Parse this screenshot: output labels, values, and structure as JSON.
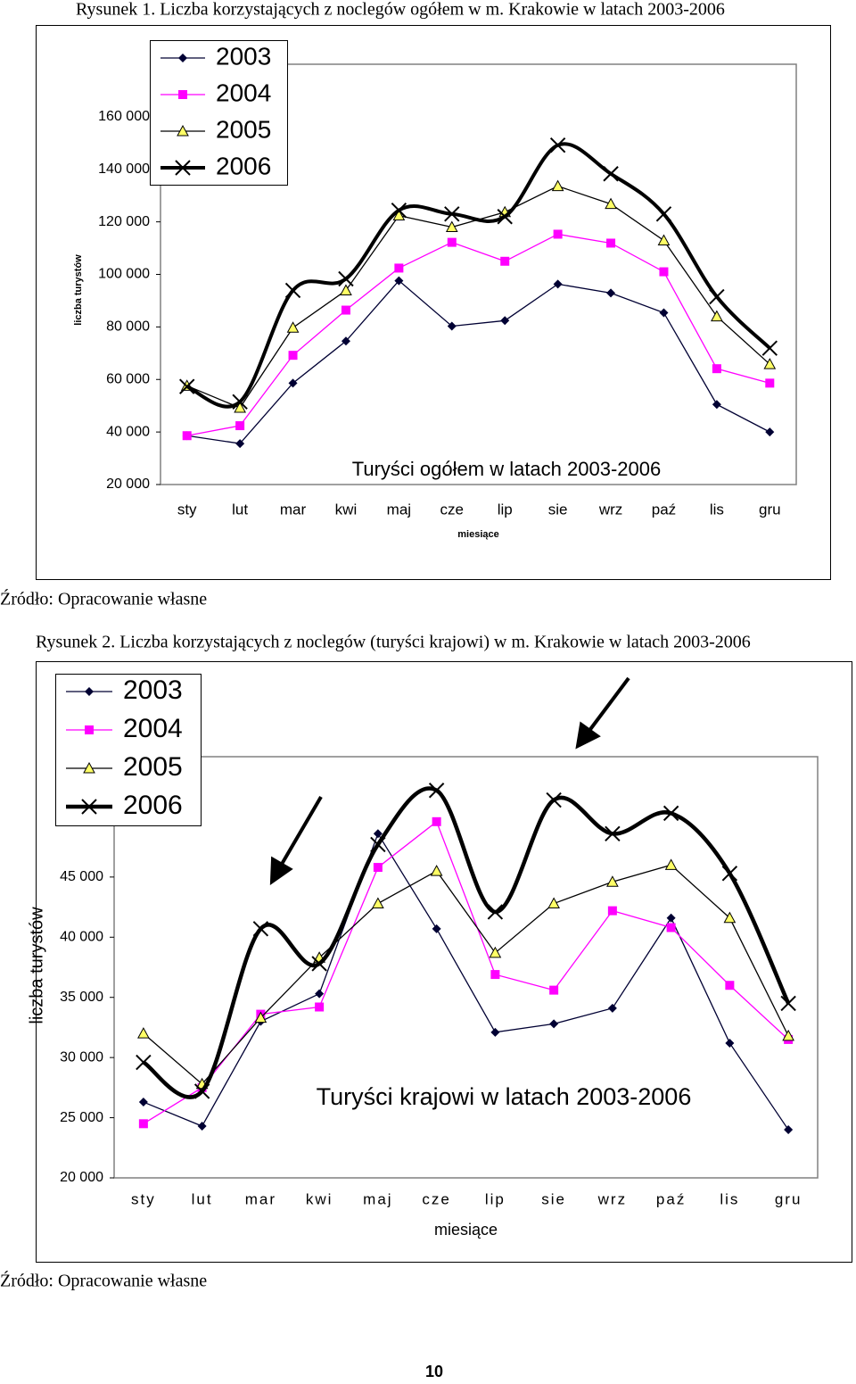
{
  "figures": [
    {
      "caption": "Rysunek 1. Liczba korzystających z noclegów ogółem w m. Krakowie w latach 2003-2006",
      "source": "Źródło: Opracowanie własne"
    },
    {
      "caption": "Rysunek 2. Liczba korzystających z noclegów (turyści krajowi) w m. Krakowie w latach 2003-2006",
      "source": "Źródło: Opracowanie własne"
    }
  ],
  "chart_data": [
    {
      "type": "line",
      "title": "Turyści ogółem w latach 2003-2006",
      "x_label": "miesiące",
      "y_label": "liczba turystów",
      "categories": [
        "sty",
        "lut",
        "mar",
        "kwi",
        "maj",
        "cze",
        "lip",
        "sie",
        "wrz",
        "paź",
        "lis",
        "gru"
      ],
      "ylim": [
        20000,
        180000
      ],
      "yticks": [
        {
          "value": 20000,
          "label": "20 000"
        },
        {
          "value": 40000,
          "label": "40 000"
        },
        {
          "value": 60000,
          "label": "60 000"
        },
        {
          "value": 80000,
          "label": "80 000"
        },
        {
          "value": 100000,
          "label": "100 000"
        },
        {
          "value": 120000,
          "label": "120 000"
        },
        {
          "value": 140000,
          "label": "140 000"
        },
        {
          "value": 160000,
          "label": "160 000"
        }
      ],
      "legend": "upper left",
      "series": [
        {
          "name": "2003",
          "color": "#000033",
          "marker": "diamond",
          "values": [
            38600,
            35600,
            58600,
            74600,
            97600,
            80300,
            82400,
            96300,
            92900,
            85400,
            50500,
            40000
          ]
        },
        {
          "name": "2004",
          "color": "#ff00ff",
          "marker": "square",
          "values": [
            38600,
            42400,
            69200,
            86400,
            102400,
            112200,
            105000,
            115300,
            111900,
            101000,
            64100,
            58600
          ]
        },
        {
          "name": "2005",
          "color": "#000000",
          "marker": "triangle",
          "values": [
            57600,
            49200,
            79700,
            93900,
            122400,
            118000,
            123700,
            133600,
            126800,
            112900,
            84000,
            65800
          ]
        },
        {
          "name": "2006",
          "color": "#000000",
          "marker": "x",
          "smooth": true,
          "values": [
            57300,
            51500,
            93900,
            98300,
            124400,
            123000,
            122000,
            149200,
            138300,
            123000,
            91500,
            71900
          ]
        }
      ]
    },
    {
      "type": "line",
      "title": "Turyści krajowi w latach 2003-2006",
      "x_label": "miesiące",
      "y_label": "liczba turystów",
      "categories": [
        "sty",
        "lut",
        "mar",
        "kwi",
        "maj",
        "cze",
        "lip",
        "sie",
        "wrz",
        "paź",
        "lis",
        "gru"
      ],
      "ylim": [
        20000,
        55000
      ],
      "yticks": [
        {
          "value": 20000,
          "label": "20 000"
        },
        {
          "value": 25000,
          "label": "25 000"
        },
        {
          "value": 30000,
          "label": "30 000"
        },
        {
          "value": 35000,
          "label": "35 000"
        },
        {
          "value": 40000,
          "label": "40 000"
        },
        {
          "value": 45000,
          "label": "45 000"
        }
      ],
      "legend": "upper left",
      "series": [
        {
          "name": "2003",
          "color": "#000033",
          "marker": "diamond",
          "values": [
            26300,
            24300,
            33000,
            35300,
            48600,
            40700,
            32100,
            32800,
            34100,
            41600,
            31200,
            24000
          ]
        },
        {
          "name": "2004",
          "color": "#ff00ff",
          "marker": "square",
          "values": [
            24500,
            27500,
            33600,
            34200,
            45800,
            49600,
            36900,
            35600,
            42200,
            40800,
            36000,
            31500
          ]
        },
        {
          "name": "2005",
          "color": "#000000",
          "marker": "triangle",
          "values": [
            32000,
            27800,
            33300,
            38300,
            42800,
            45500,
            38700,
            42800,
            44600,
            46000,
            41600,
            31800
          ]
        },
        {
          "name": "2006",
          "color": "#000000",
          "marker": "x",
          "smooth": true,
          "values": [
            29600,
            27200,
            40700,
            37800,
            47700,
            52200,
            42100,
            51400,
            48600,
            50300,
            45300,
            34500
          ]
        }
      ]
    }
  ],
  "page_number": "10"
}
